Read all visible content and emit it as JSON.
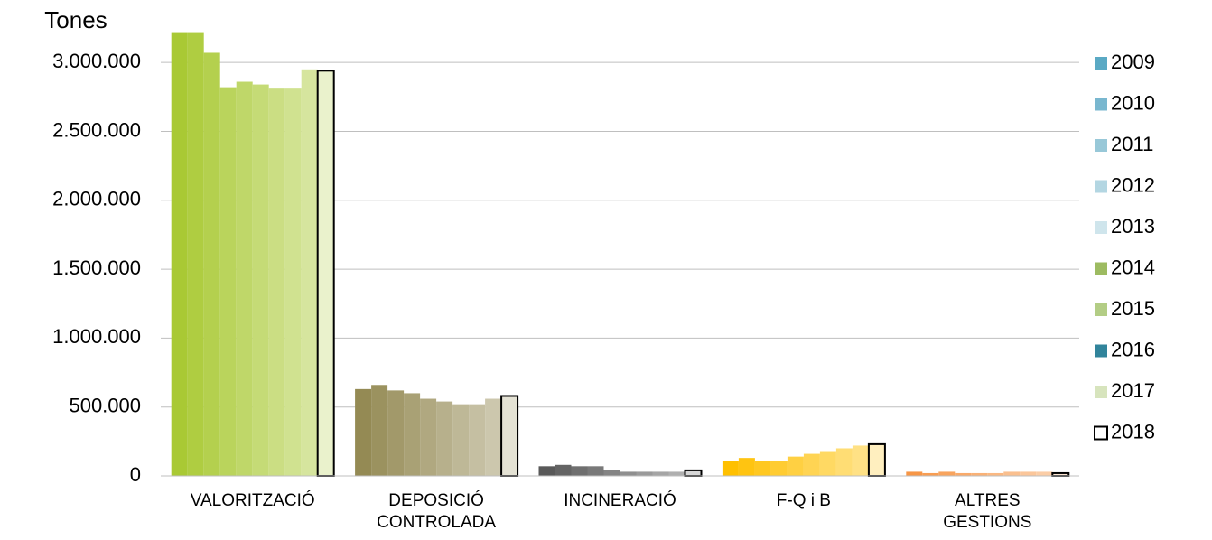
{
  "chart_data": {
    "type": "bar",
    "y_label": "Tones",
    "categories": [
      "VALORITZACIÓ",
      "DEPOSICIÓ\nCONTROLADA",
      "INCINERACIÓ",
      "F-Q i B",
      "ALTRES\nGESTIONS"
    ],
    "category_colors": [
      "#a9c934",
      "#948a54",
      "#595959",
      "#ffc000",
      "#f79646"
    ],
    "series": [
      {
        "name": "2009",
        "color": "#5aa9c4",
        "values": [
          3220000,
          630000,
          70000,
          110000,
          30000
        ]
      },
      {
        "name": "2010",
        "color": "#79b7cf",
        "values": [
          3220000,
          660000,
          80000,
          130000,
          20000
        ]
      },
      {
        "name": "2011",
        "color": "#98c8d8",
        "values": [
          3070000,
          620000,
          70000,
          110000,
          30000
        ]
      },
      {
        "name": "2012",
        "color": "#b3d6e2",
        "values": [
          2820000,
          600000,
          70000,
          110000,
          20000
        ]
      },
      {
        "name": "2013",
        "color": "#cfe5ec",
        "values": [
          2860000,
          560000,
          40000,
          140000,
          20000
        ]
      },
      {
        "name": "2014",
        "color": "#9dbb61",
        "values": [
          2840000,
          540000,
          30000,
          160000,
          20000
        ]
      },
      {
        "name": "2015",
        "color": "#b3cd85",
        "values": [
          2810000,
          520000,
          30000,
          180000,
          30000
        ]
      },
      {
        "name": "2016",
        "color": "#31849b",
        "values": [
          2810000,
          520000,
          30000,
          200000,
          30000
        ]
      },
      {
        "name": "2017",
        "color": "#d7e4bd",
        "values": [
          2950000,
          560000,
          30000,
          220000,
          30000
        ]
      },
      {
        "name": "2018",
        "color": "#ffffff",
        "edgecolor": "#000000",
        "values": [
          2940000,
          580000,
          40000,
          230000,
          20000
        ]
      }
    ],
    "ylim": [
      0,
      3250000
    ],
    "yticks": [
      0,
      {
        "value": 500000,
        "label": "500.000"
      },
      {
        "value": 1000000,
        "label": "1.000.000"
      },
      {
        "value": 1500000,
        "label": "1.500.000"
      },
      {
        "value": 2000000,
        "label": "2.000.000"
      },
      {
        "value": 2500000,
        "label": "2.500.000"
      },
      {
        "value": 3000000,
        "label": "3.000.000"
      }
    ],
    "grid": true,
    "legend": "right"
  }
}
